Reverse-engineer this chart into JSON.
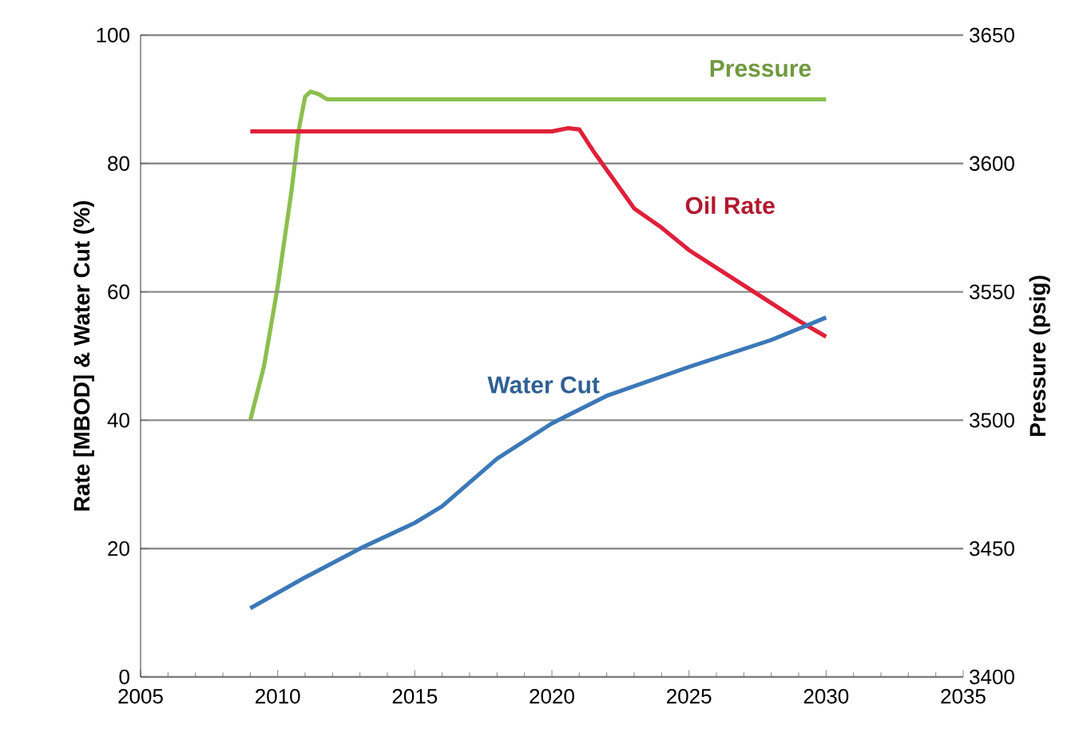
{
  "chart_data": {
    "type": "line",
    "ylabel": "Rate [MBOD] & Water Cut (%)",
    "y2label": "Pressure (psig)",
    "xlim": [
      2005,
      2035
    ],
    "xticks": [
      2005,
      2010,
      2015,
      2020,
      2025,
      2030,
      2035
    ],
    "ylim": [
      0,
      100
    ],
    "yticks": [
      0,
      20,
      40,
      60,
      80,
      100
    ],
    "y2lim": [
      3400,
      3650
    ],
    "y2ticks": [
      3400,
      3450,
      3500,
      3550,
      3600,
      3650
    ],
    "grid": "y",
    "marker": "none",
    "line_style": "solid",
    "series": [
      {
        "name": "Pressure",
        "color": "#8cbf4f",
        "axis": "y2",
        "x": [
          2009,
          2009.5,
          2010,
          2010.5,
          2010.8,
          2011,
          2011.2,
          2011.5,
          2011.8,
          2015,
          2020,
          2025,
          2030
        ],
        "values": [
          3500,
          3521,
          3552,
          3589,
          3615,
          3626,
          3628,
          3627,
          3625,
          3625,
          3625,
          3625,
          3625
        ]
      },
      {
        "name": "Oil Rate",
        "color": "#e0203a",
        "x": [
          2009,
          2015,
          2020,
          2020.6,
          2021,
          2021.5,
          2022,
          2023,
          2024,
          2025,
          2027,
          2029,
          2030
        ],
        "values": [
          85,
          85,
          85,
          85.5,
          85.3,
          82,
          79,
          73,
          70,
          66.5,
          61,
          55.5,
          53
        ]
      },
      {
        "name": "Water Cut",
        "color": "#3b78b8",
        "x": [
          2009,
          2011,
          2013,
          2015,
          2016,
          2018,
          2020,
          2022,
          2025,
          2028,
          2030
        ],
        "values": [
          10.7,
          15.5,
          20,
          24,
          26.6,
          34,
          39.5,
          43.8,
          48.3,
          52.5,
          56
        ]
      }
    ]
  }
}
